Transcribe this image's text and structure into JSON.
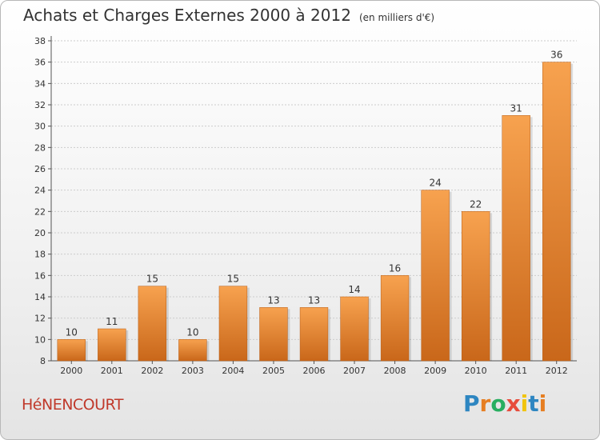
{
  "header": {
    "title": "Achats et Charges Externes 2000 à 2012",
    "subtitle": "(en milliers d'€)"
  },
  "footer": {
    "commune": "HéNENCOURT",
    "logo_letters": [
      "P",
      "r",
      "o",
      "x",
      "i",
      "t",
      "i"
    ],
    "logo_colors": [
      "#2e86c1",
      "#e67e22",
      "#27ae60",
      "#e74c3c",
      "#f1c40f",
      "#2e86c1",
      "#e67e22"
    ]
  },
  "colors": {
    "bar_top": "#f7a24f",
    "bar_bottom": "#c9671a",
    "axis": "#555555",
    "grid": "#cccccc"
  },
  "chart_data": {
    "type": "bar",
    "title": "Achats et Charges Externes 2000 à 2012",
    "categories": [
      "2000",
      "2001",
      "2002",
      "2003",
      "2004",
      "2005",
      "2006",
      "2007",
      "2008",
      "2009",
      "2010",
      "2011",
      "2012"
    ],
    "values": [
      10,
      11,
      15,
      10,
      15,
      13,
      13,
      14,
      16,
      24,
      22,
      31,
      36
    ],
    "data_labels": [
      "10",
      "11",
      "15",
      "10",
      "15",
      "13",
      "13",
      "14",
      "16",
      "24",
      "22",
      "31",
      "36"
    ],
    "yticks": [
      "8",
      "10",
      "12",
      "14",
      "16",
      "18",
      "20",
      "22",
      "24",
      "26",
      "28",
      "30",
      "32",
      "34",
      "36",
      "38"
    ],
    "ylim": [
      8,
      38
    ],
    "ystep": 2,
    "grid": true
  }
}
